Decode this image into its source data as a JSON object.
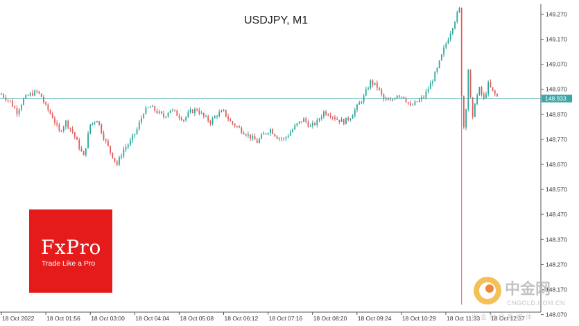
{
  "chart_data": {
    "type": "candlestick",
    "title": "USDJPY, M1",
    "symbol": "USDJPY",
    "timeframe": "M1",
    "ylim": [
      148.08,
      149.31
    ],
    "y_ticks": [
      "149.270",
      "149.170",
      "149.070",
      "148.970",
      "148.870",
      "148.770",
      "148.670",
      "148.570",
      "148.470",
      "148.370",
      "148.270",
      "148.170",
      "148.070"
    ],
    "x_ticks": [
      "18 Oct 2022",
      "18 Oct 01:56",
      "18 Oct 03:00",
      "18 Oct 04:04",
      "18 Oct 05:08",
      "18 Oct 06:12",
      "18 Oct 07:16",
      "18 Oct 08:20",
      "18 Oct 09:24",
      "18 Oct 10:29",
      "18 Oct 11:33",
      "18 Oct 12:37"
    ],
    "current_price": "148.933",
    "colors": {
      "bull": "#26a69a",
      "bear": "#e05a5a",
      "price_line": "#3fa7a7",
      "badge": "#3fa7a7"
    },
    "path_points": [
      [
        0,
        148.95
      ],
      [
        4,
        148.92
      ],
      [
        7,
        148.88
      ],
      [
        10,
        148.93
      ],
      [
        13,
        148.95
      ],
      [
        16,
        148.96
      ],
      [
        18,
        148.94
      ],
      [
        20,
        148.9
      ],
      [
        23,
        148.86
      ],
      [
        26,
        148.8
      ],
      [
        29,
        148.84
      ],
      [
        32,
        148.8
      ],
      [
        35,
        148.74
      ],
      [
        37,
        148.7
      ],
      [
        40,
        148.83
      ],
      [
        43,
        148.85
      ],
      [
        46,
        148.78
      ],
      [
        49,
        148.72
      ],
      [
        52,
        148.67
      ],
      [
        55,
        148.73
      ],
      [
        58,
        148.76
      ],
      [
        61,
        148.81
      ],
      [
        64,
        148.88
      ],
      [
        67,
        148.9
      ],
      [
        70,
        148.88
      ],
      [
        73,
        148.86
      ],
      [
        76,
        148.89
      ],
      [
        79,
        148.87
      ],
      [
        82,
        148.85
      ],
      [
        85,
        148.88
      ],
      [
        88,
        148.89
      ],
      [
        91,
        148.86
      ],
      [
        94,
        148.84
      ],
      [
        97,
        148.87
      ],
      [
        100,
        148.88
      ],
      [
        103,
        148.84
      ],
      [
        106,
        148.82
      ],
      [
        109,
        148.8
      ],
      [
        112,
        148.78
      ],
      [
        115,
        148.76
      ],
      [
        118,
        148.79
      ],
      [
        121,
        148.81
      ],
      [
        124,
        148.78
      ],
      [
        127,
        148.77
      ],
      [
        130,
        148.8
      ],
      [
        133,
        148.83
      ],
      [
        136,
        148.85
      ],
      [
        139,
        148.82
      ],
      [
        142,
        148.84
      ],
      [
        145,
        148.88
      ],
      [
        148,
        148.87
      ],
      [
        151,
        148.85
      ],
      [
        154,
        148.84
      ],
      [
        157,
        148.86
      ],
      [
        160,
        148.9
      ],
      [
        163,
        148.94
      ],
      [
        166,
        149.0
      ],
      [
        169,
        148.98
      ],
      [
        172,
        148.93
      ],
      [
        175,
        148.92
      ],
      [
        178,
        148.95
      ],
      [
        181,
        148.94
      ],
      [
        184,
        148.9
      ],
      [
        187,
        148.92
      ],
      [
        190,
        148.94
      ],
      [
        193,
        148.99
      ],
      [
        196,
        149.05
      ],
      [
        199,
        149.13
      ],
      [
        202,
        149.2
      ],
      [
        205,
        149.27
      ],
      [
        206,
        149.29
      ],
      [
        207,
        148.95
      ],
      [
        208,
        148.82
      ],
      [
        209,
        148.9
      ],
      [
        210,
        149.05
      ],
      [
        211,
        148.93
      ],
      [
        212,
        148.85
      ],
      [
        213,
        148.92
      ],
      [
        215,
        148.97
      ],
      [
        217,
        148.93
      ],
      [
        219,
        148.99
      ],
      [
        221,
        148.96
      ],
      [
        223,
        148.94
      ]
    ],
    "spike_low": 148.11,
    "spike_index": 207
  },
  "logo": {
    "brand": "FxPro",
    "tagline": "Trade Like a Pro"
  },
  "watermark": {
    "cn": "中金网",
    "en": "CNGOLD.COM.CN",
    "sub": "中金财经新媒体"
  }
}
